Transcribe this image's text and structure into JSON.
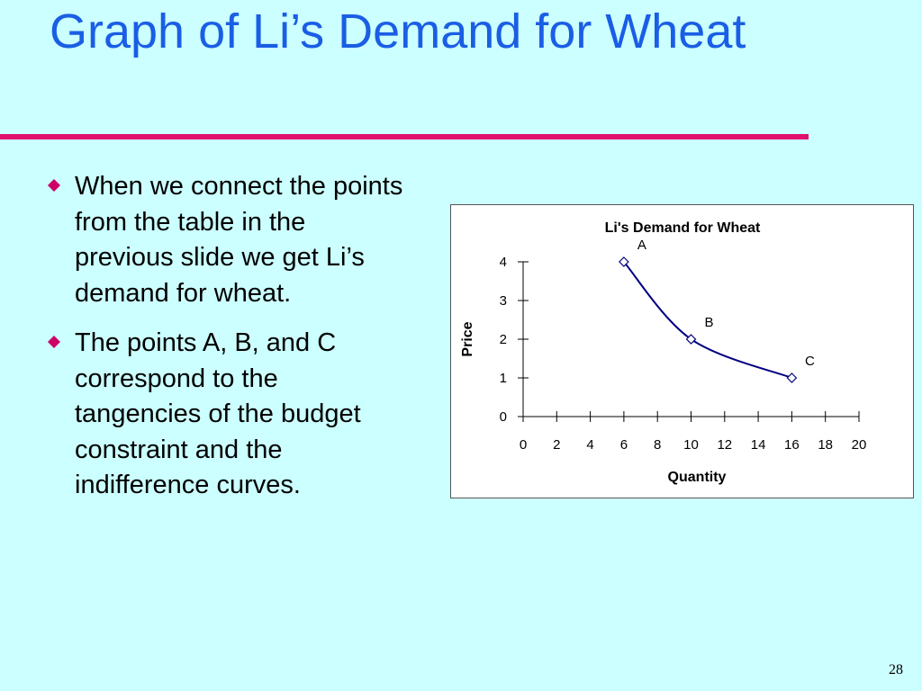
{
  "slide": {
    "title": "Graph of Li’s Demand for Wheat",
    "bullets": [
      "When we connect the points from the table in the previous slide we get Li’s demand for wheat.",
      "The points A, B, and C correspond to the tangencies of the budget constraint and the indifference curves."
    ],
    "page_number": "28"
  },
  "colors": {
    "background": "#ccffff",
    "title": "#1a5ee6",
    "rule": "#e0106e",
    "bullet": "#cc0066",
    "curve": "#000080"
  },
  "chart_data": {
    "type": "line",
    "title": "Li's Demand for Wheat",
    "xlabel": "Quantity",
    "ylabel": "Price",
    "xlim": [
      0,
      20
    ],
    "ylim": [
      0,
      4
    ],
    "x_ticks": [
      0,
      2,
      4,
      6,
      8,
      10,
      12,
      14,
      16,
      18,
      20
    ],
    "y_ticks": [
      0,
      1,
      2,
      3,
      4
    ],
    "grid": false,
    "smooth": true,
    "series": [
      {
        "points": [
          {
            "x": 6,
            "y": 4,
            "label": "A"
          },
          {
            "x": 10,
            "y": 2,
            "label": "B"
          },
          {
            "x": 16,
            "y": 1,
            "label": "C"
          }
        ]
      }
    ]
  }
}
